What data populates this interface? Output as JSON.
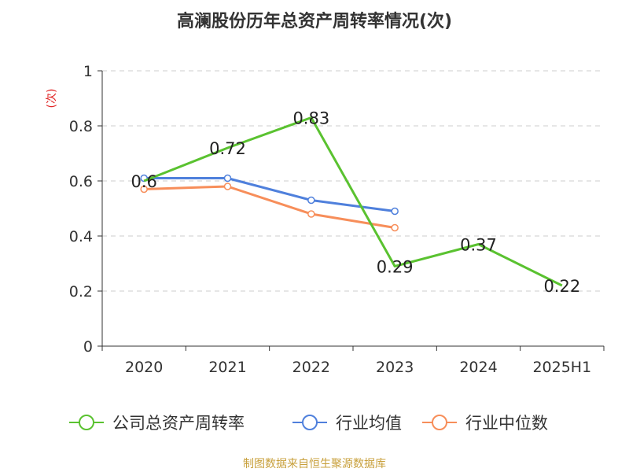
{
  "chart_data": {
    "type": "line",
    "title": "高澜股份历年总资产周转率情况(次)",
    "ylabel": "(次)",
    "xlabel": "",
    "categories": [
      "2020",
      "2021",
      "2022",
      "2023",
      "2024",
      "2025H1"
    ],
    "ylim": [
      0,
      1
    ],
    "yticks": [
      "0",
      "0.2",
      "0.4",
      "0.6",
      "0.8",
      "1"
    ],
    "grid": true,
    "legend_position": "bottom",
    "series": [
      {
        "name": "公司总资产周转率",
        "color": "#5ac230",
        "values": [
          0.6,
          0.72,
          0.83,
          0.29,
          0.37,
          0.22
        ],
        "labels": [
          "0.6",
          "0.72",
          "0.83",
          "0.29",
          "0.37",
          "0.22"
        ],
        "show_labels": true,
        "show_markers": false
      },
      {
        "name": "行业均值",
        "color": "#4f80dc",
        "values": [
          0.61,
          0.61,
          0.53,
          0.49,
          null,
          null
        ],
        "show_labels": false,
        "show_markers": true
      },
      {
        "name": "行业中位数",
        "color": "#f78e5a",
        "values": [
          0.57,
          0.58,
          0.48,
          0.43,
          null,
          null
        ],
        "show_labels": false,
        "show_markers": true
      }
    ],
    "source": "制图数据来自恒生聚源数据库"
  }
}
